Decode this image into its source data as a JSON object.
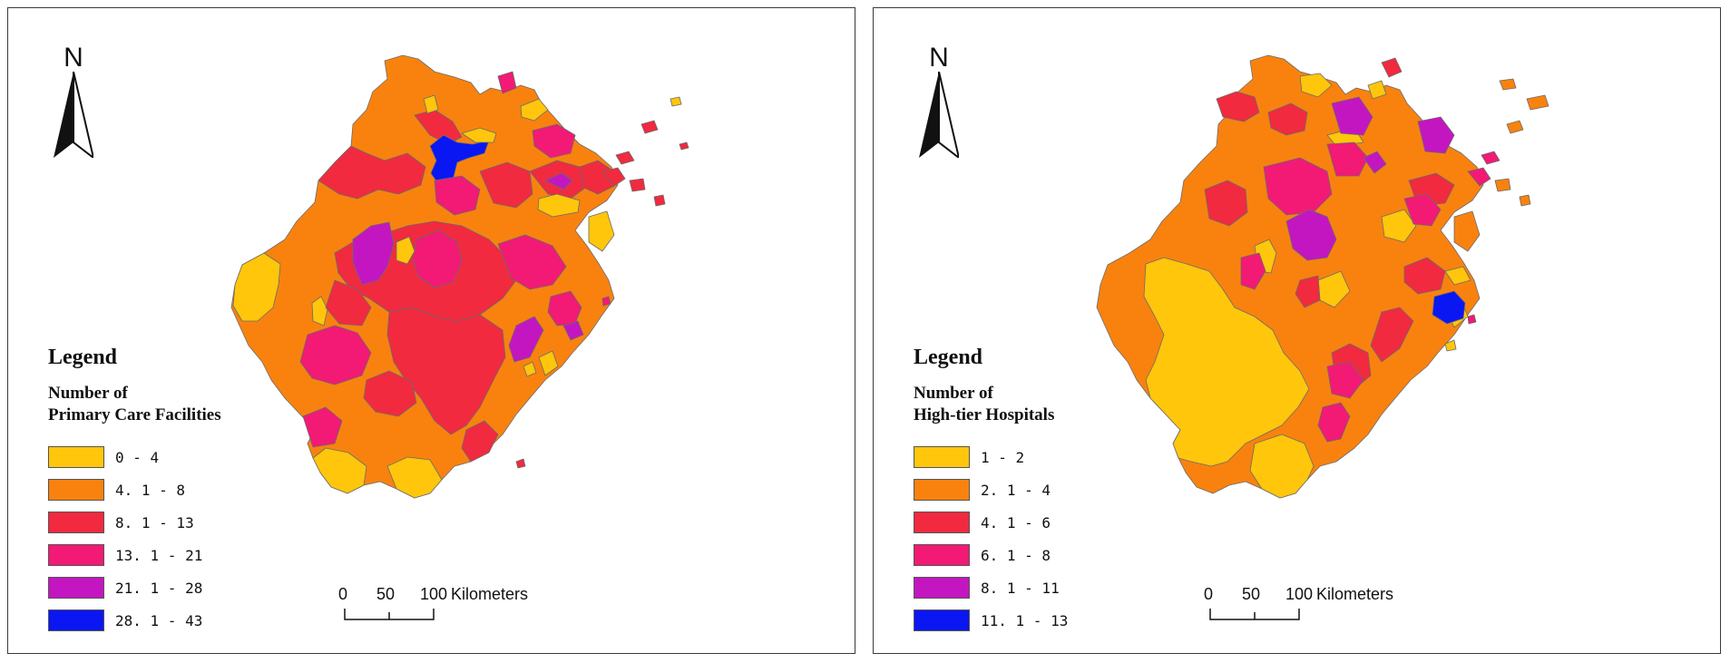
{
  "maps": [
    {
      "north_label": "N",
      "legend_title": "Legend",
      "legend_subtitle_line1": "Number of",
      "legend_subtitle_line2": "Primary Care Facilities",
      "classes": [
        {
          "label": "0 - 4",
          "color": "#ffc60b"
        },
        {
          "label": "4. 1 - 8",
          "color": "#f9820f"
        },
        {
          "label": "8. 1 - 13",
          "color": "#f12a3f"
        },
        {
          "label": "13. 1 - 21",
          "color": "#f21a74"
        },
        {
          "label": "21. 1 - 28",
          "color": "#c416c0"
        },
        {
          "label": "28. 1 - 43",
          "color": "#0a17f2"
        }
      ],
      "scale": {
        "ticks": [
          "0",
          "50",
          "100"
        ],
        "unit": "Kilometers"
      }
    },
    {
      "north_label": "N",
      "legend_title": "Legend",
      "legend_subtitle_line1": "Number of",
      "legend_subtitle_line2": "High-tier Hospitals",
      "classes": [
        {
          "label": "1 - 2",
          "color": "#ffc60b"
        },
        {
          "label": "2. 1 - 4",
          "color": "#f9820f"
        },
        {
          "label": "4. 1 - 6",
          "color": "#f12a3f"
        },
        {
          "label": "6. 1 - 8",
          "color": "#f21a74"
        },
        {
          "label": "8. 1 - 11",
          "color": "#c416c0"
        },
        {
          "label": "11. 1 - 13",
          "color": "#0a17f2"
        }
      ],
      "scale": {
        "ticks": [
          "0",
          "50",
          "100"
        ],
        "unit": "Kilometers"
      }
    }
  ]
}
